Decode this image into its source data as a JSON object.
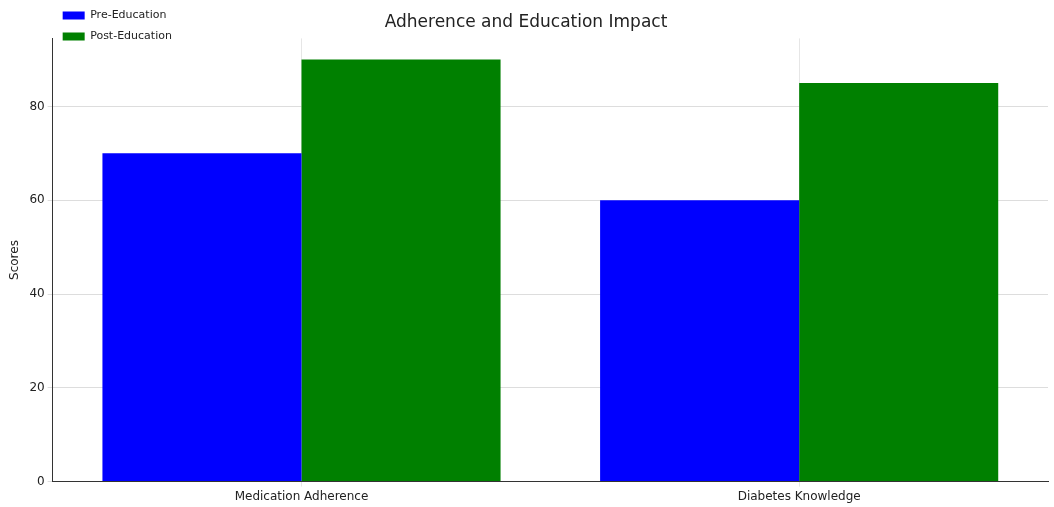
{
  "chart_data": {
    "type": "bar",
    "title": "Adherence and Education Impact",
    "ylabel": "Scores",
    "categories": [
      "Medication Adherence",
      "Diabetes Knowledge"
    ],
    "series": [
      {
        "name": "Pre-Education",
        "color": "#0000ff",
        "values": [
          70,
          60
        ]
      },
      {
        "name": "Post-Education",
        "color": "#008000",
        "values": [
          90,
          85
        ]
      }
    ],
    "ylim": [
      0,
      94.5
    ],
    "yticks": [
      0,
      20,
      40,
      60,
      80
    ],
    "grid": true,
    "legend": "top left"
  }
}
